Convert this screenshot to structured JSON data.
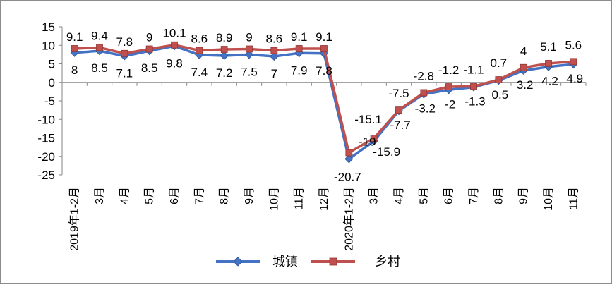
{
  "chart_data": {
    "type": "line",
    "categories": [
      "2019年1-2月",
      "3月",
      "4月",
      "5月",
      "6月",
      "7月",
      "8月",
      "9月",
      "10月",
      "11月",
      "12月",
      "2020年1-2月",
      "3月",
      "4月",
      "5月",
      "6月",
      "7月",
      "8月",
      "9月",
      "10月",
      "11月"
    ],
    "series": [
      {
        "name": "城镇",
        "color": "#4472C4",
        "marker": "diamond",
        "values": [
          8,
          8.5,
          7.1,
          8.5,
          9.8,
          7.4,
          7.2,
          7.5,
          7,
          7.9,
          7.8,
          -20.7,
          -15.9,
          -7.7,
          -3.2,
          -2,
          -1.3,
          0.5,
          3.2,
          4.2,
          4.9
        ]
      },
      {
        "name": "乡村",
        "color": "#C0504D",
        "marker": "square",
        "values": [
          9.1,
          9.4,
          7.8,
          9,
          10.1,
          8.6,
          8.9,
          9,
          8.6,
          9.1,
          9.1,
          -19,
          -15.1,
          -7.5,
          -2.8,
          -1.2,
          -1.1,
          0.7,
          4,
          5.1,
          5.6
        ]
      }
    ],
    "ylim": [
      -25,
      15
    ],
    "yticks": [
      15,
      10,
      5,
      0,
      -5,
      -10,
      -15,
      -20,
      -25
    ],
    "grid": false,
    "legend_position": "bottom"
  }
}
